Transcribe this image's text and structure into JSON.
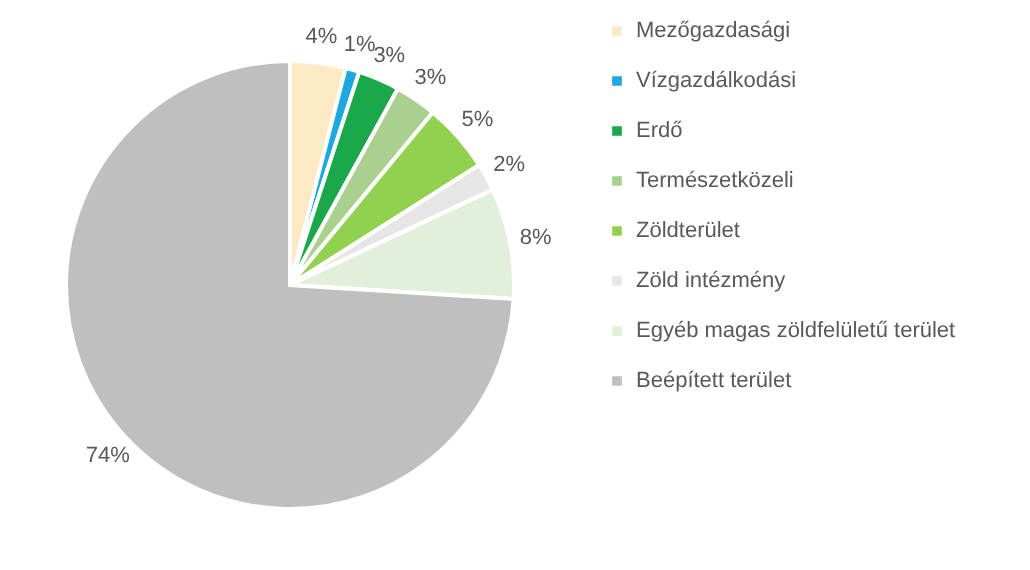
{
  "chart_data": {
    "type": "pie",
    "categories": [
      "Mezőgazdasági",
      "Vízgazdálkodási",
      "Erdő",
      "Természetközeli",
      "Zöldterület",
      "Zöld intézmény",
      "Egyéb magas zöldfelületű terület",
      "Beépített terület"
    ],
    "values": [
      4,
      1,
      3,
      3,
      5,
      2,
      8,
      74
    ],
    "value_labels": [
      "4%",
      "1%",
      "3%",
      "3%",
      "5%",
      "2%",
      "8%",
      "74%"
    ],
    "colors": [
      "#fde9c4",
      "#1fa7e0",
      "#1aa84a",
      "#a9d08e",
      "#92d050",
      "#e7e6e6",
      "#e2efda",
      "#bfbfbf"
    ],
    "legend": "right"
  }
}
